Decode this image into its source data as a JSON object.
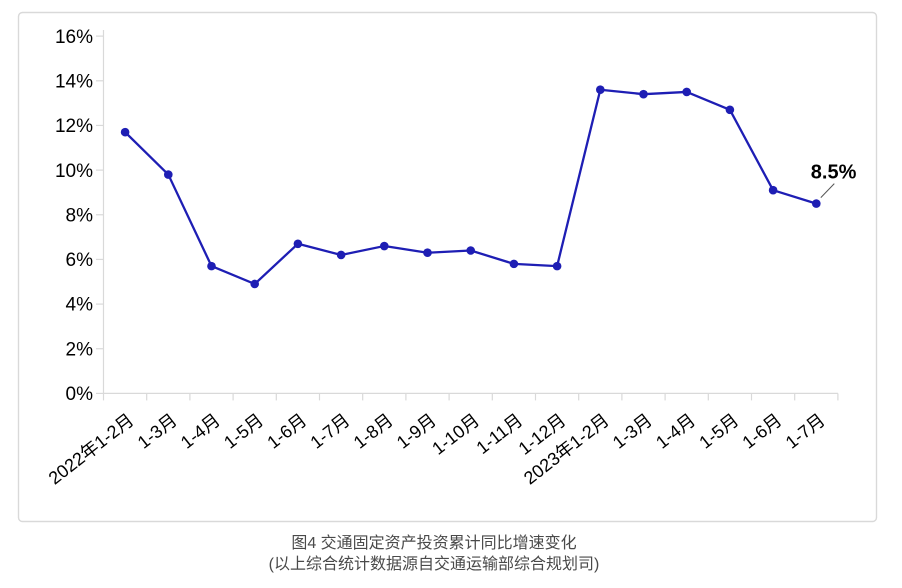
{
  "chart_data": {
    "type": "line",
    "title": "图4  交通固定资产投资累计同比增速变化",
    "subtitle": "(以上综合统计数据源自交通运输部综合规划司)",
    "categories": [
      "2022年1-2月",
      "1-3月",
      "1-4月",
      "1-5月",
      "1-6月",
      "1-7月",
      "1-8月",
      "1-9月",
      "1-10月",
      "1-11月",
      "1-12月",
      "2023年1-2月",
      "1-3月",
      "1-4月",
      "1-5月",
      "1-6月",
      "1-7月"
    ],
    "values": [
      11.7,
      9.8,
      5.7,
      4.9,
      6.7,
      6.2,
      6.6,
      6.3,
      6.4,
      5.8,
      5.7,
      13.6,
      13.4,
      13.5,
      12.7,
      9.1,
      8.5
    ],
    "y_tick_labels": [
      "0%",
      "2%",
      "4%",
      "6%",
      "8%",
      "10%",
      "12%",
      "14%",
      "16%"
    ],
    "ylim": [
      0,
      16
    ],
    "y_tick_step": 2,
    "grid": false,
    "legend_position": "none",
    "annotation": {
      "text": "8.5%",
      "category_index": 16,
      "value": 8.5
    },
    "colors": {
      "line": "#1e1eb4",
      "marker": "#1e1eb4",
      "axis": "#d9d9d9",
      "frame_border": "#d9d9d9",
      "tick_label": "#000000",
      "annotation_text": "#000000",
      "leader_line": "#555555"
    }
  }
}
